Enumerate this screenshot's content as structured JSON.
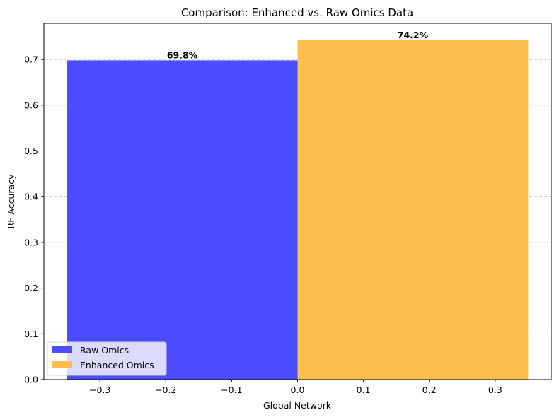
{
  "chart_data": {
    "type": "bar",
    "title": "Comparison: Enhanced vs. Raw Omics Data",
    "xlabel": "Global Network",
    "ylabel": "RF Accuracy",
    "xlim": [
      -0.385,
      0.385
    ],
    "ylim": [
      0,
      0.779
    ],
    "xticks": [
      -0.3,
      -0.2,
      -0.1,
      0.0,
      0.1,
      0.2,
      0.3
    ],
    "xtick_labels": [
      "−0.3",
      "−0.2",
      "−0.1",
      "0.0",
      "0.1",
      "0.2",
      "0.3"
    ],
    "yticks": [
      0.0,
      0.1,
      0.2,
      0.3,
      0.4,
      0.5,
      0.6,
      0.7
    ],
    "ytick_labels": [
      "0.0",
      "0.1",
      "0.2",
      "0.3",
      "0.4",
      "0.5",
      "0.6",
      "0.7"
    ],
    "grid": "y-dashed",
    "legend_position": "lower-left",
    "series": [
      {
        "name": "Raw Omics",
        "x0": -0.35,
        "x1": 0.0,
        "value": 0.698,
        "label": "69.8%",
        "color": "#4b4bff"
      },
      {
        "name": "Enhanced Omics",
        "x0": 0.0,
        "x1": 0.35,
        "value": 0.742,
        "label": "74.2%",
        "color": "#fdbe4f"
      }
    ]
  }
}
